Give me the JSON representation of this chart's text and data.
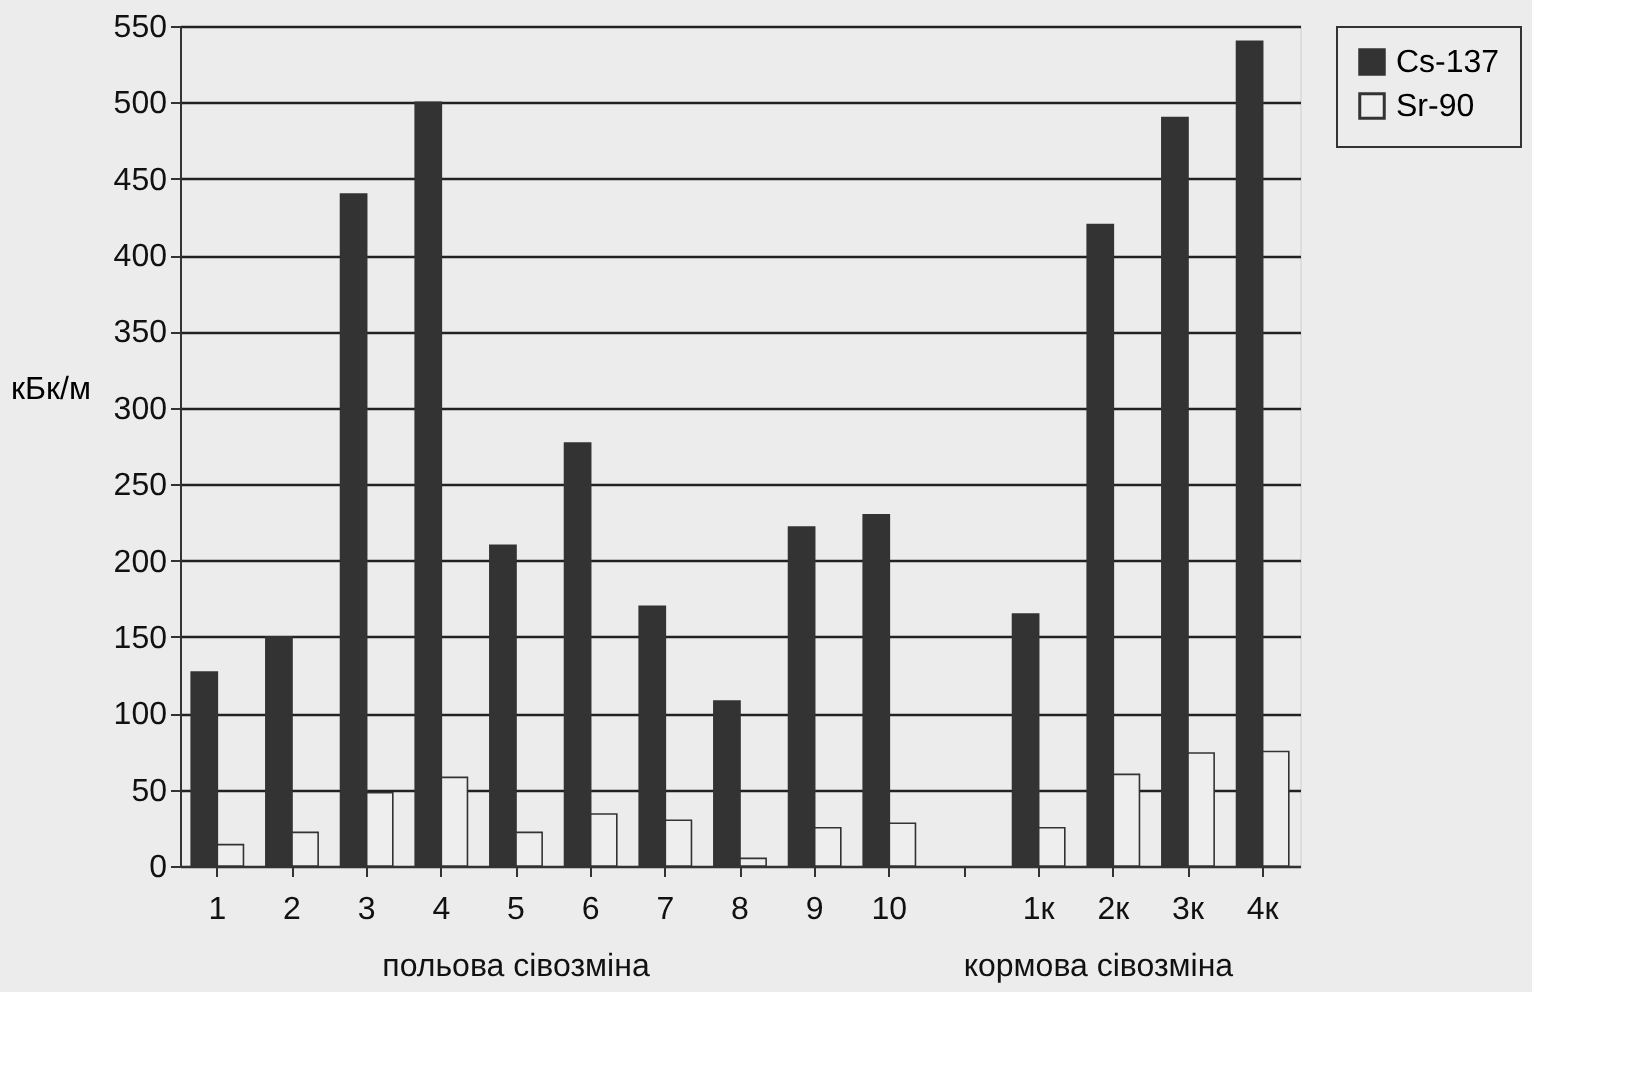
{
  "chart_data": {
    "type": "bar",
    "ylabel": "кБк/м",
    "categories": [
      "1",
      "2",
      "3",
      "4",
      "5",
      "6",
      "7",
      "8",
      "9",
      "10",
      null,
      "1к",
      "2к",
      "3к",
      "4к"
    ],
    "series": [
      {
        "name": "Cs-137",
        "color": "#333333",
        "values": [
          127,
          150,
          440,
          500,
          210,
          277,
          170,
          108,
          222,
          230,
          null,
          165,
          420,
          490,
          540
        ]
      },
      {
        "name": "Sr-90",
        "color": "#eeeeee",
        "values": [
          14,
          22,
          48,
          58,
          22,
          34,
          30,
          5,
          25,
          28,
          null,
          25,
          60,
          74,
          75
        ]
      }
    ],
    "ylim": [
      0,
      550
    ],
    "yticks": [
      0,
      50,
      100,
      150,
      200,
      250,
      300,
      350,
      400,
      450,
      500,
      550
    ],
    "grid": "y",
    "legend": "right",
    "annotations": [
      "польова сівозміна",
      "кормова сівозміна"
    ]
  }
}
